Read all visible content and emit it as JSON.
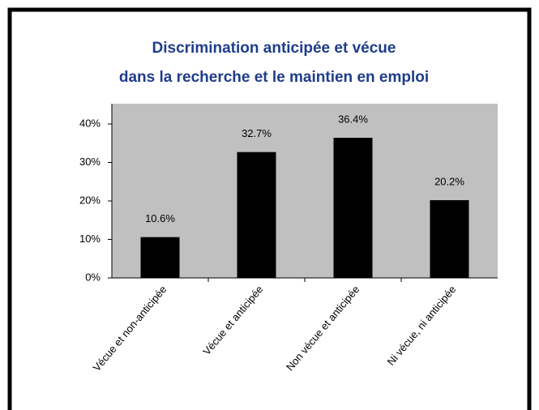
{
  "chart_data": {
    "type": "bar",
    "title": "Discrimination anticipée et vécue",
    "subtitle": "dans la recherche et le maintien en emploi",
    "categories": [
      "Vécue et non-anticipée",
      "Vécue et anticipée",
      "Non vécue et anticipée",
      "Ni vécue, ni anticipée"
    ],
    "values": [
      10.6,
      32.7,
      36.4,
      20.2
    ],
    "value_labels": [
      "10.6%",
      "32.7%",
      "36.4%",
      "20.2%"
    ],
    "color": "#000000",
    "ylim": [
      0,
      40
    ],
    "yticks": [
      {
        "value": 0,
        "label": "0%"
      },
      {
        "value": 10,
        "label": "10%"
      },
      {
        "value": 20,
        "label": "20%"
      },
      {
        "value": 30,
        "label": "30%"
      },
      {
        "value": 40,
        "label": "40%"
      }
    ],
    "grid": false
  }
}
